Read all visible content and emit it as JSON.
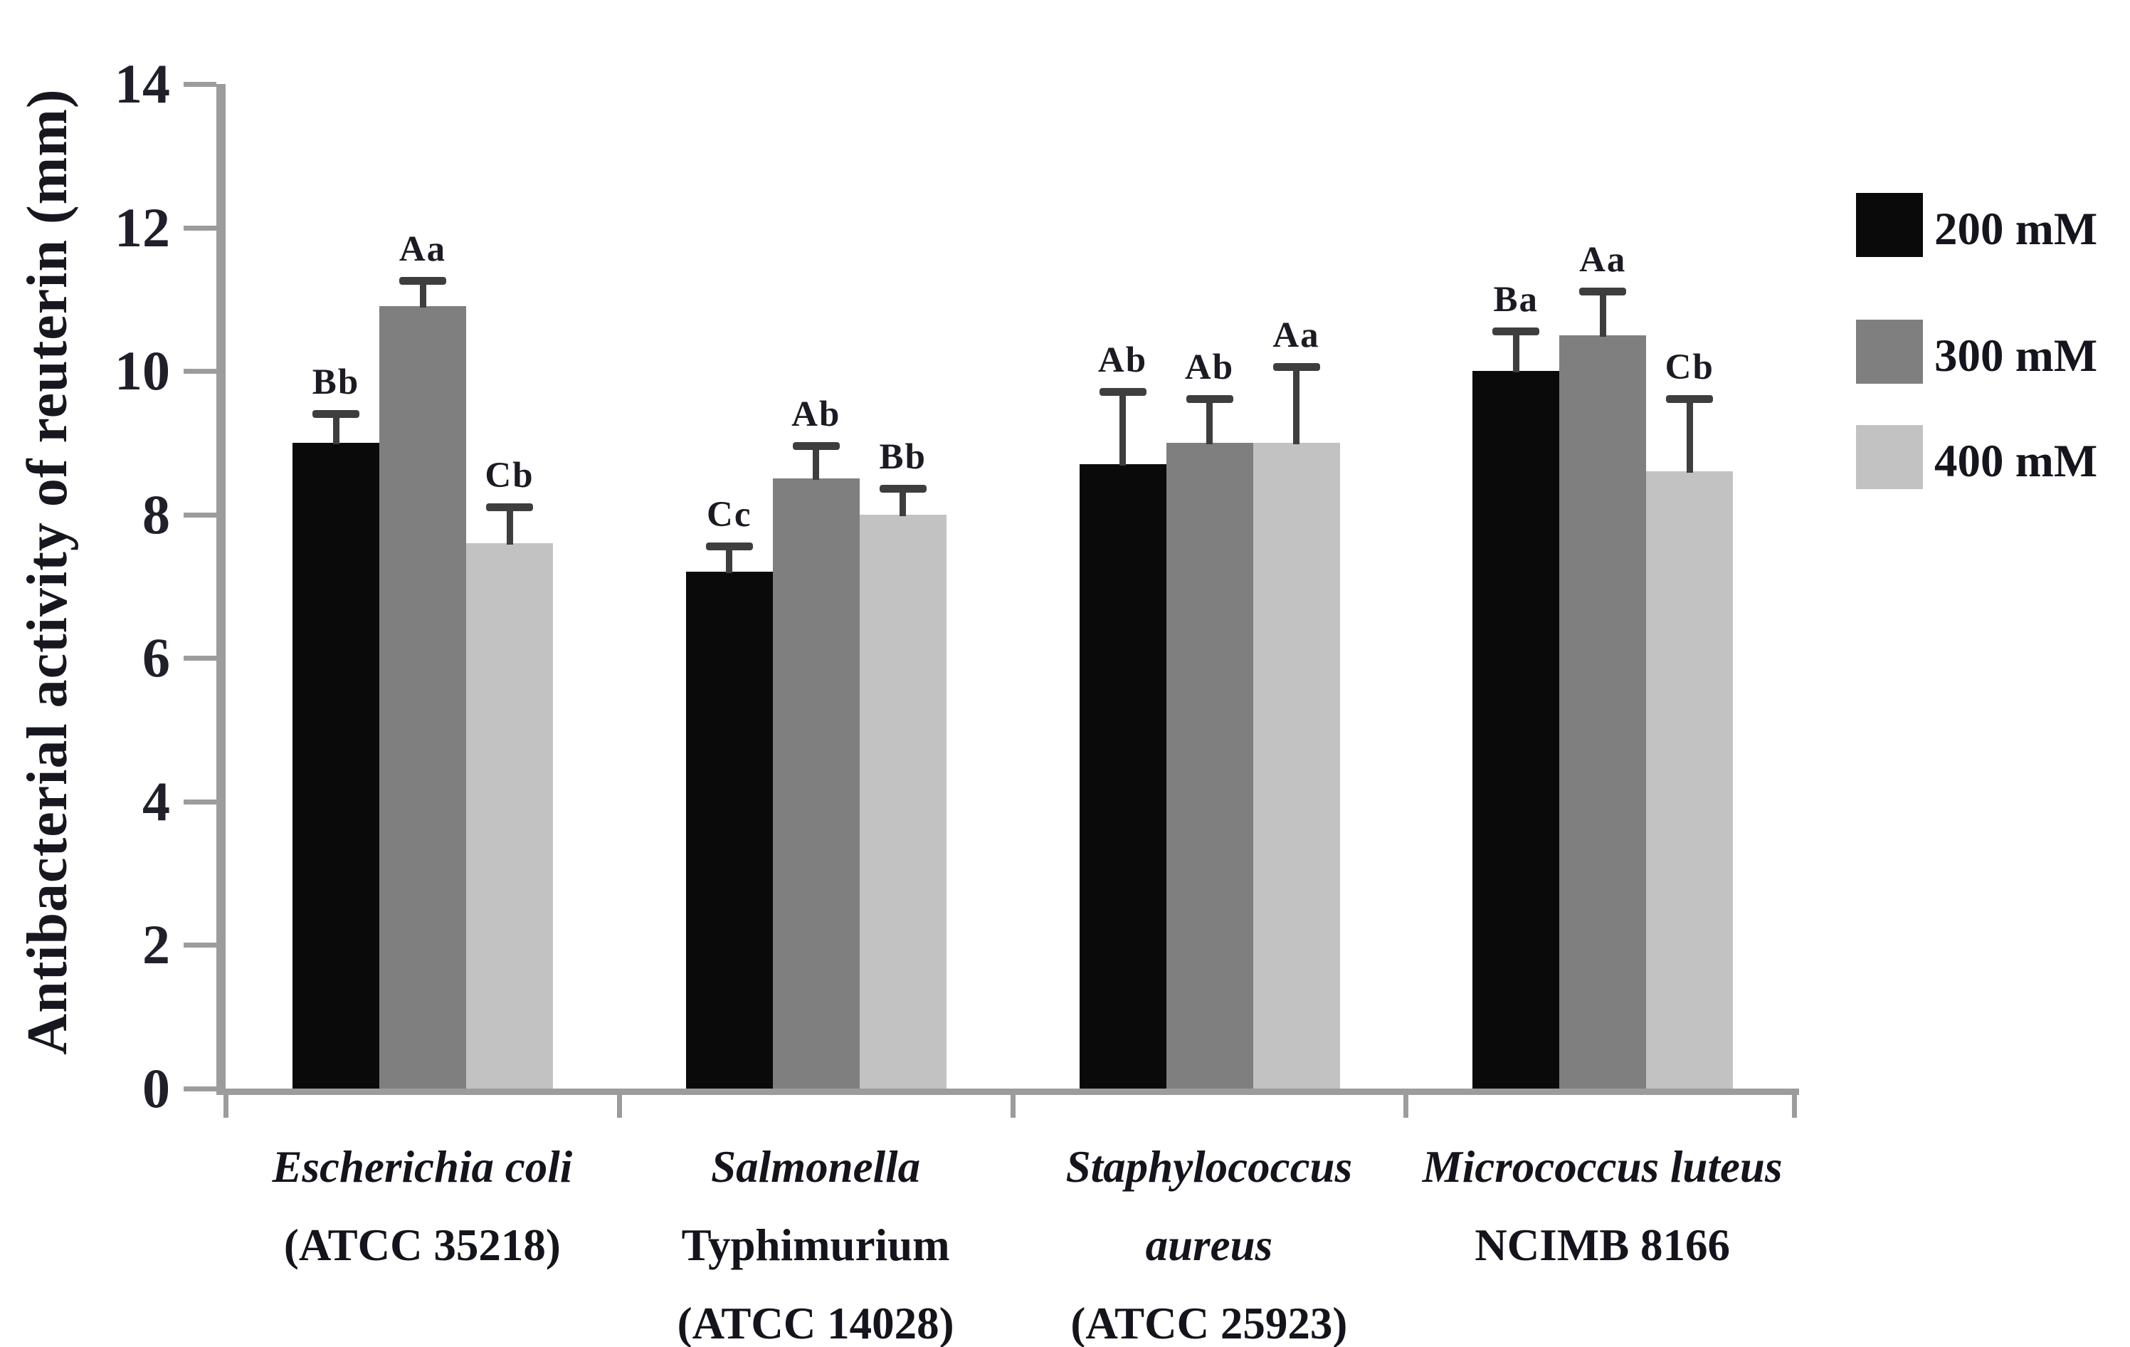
{
  "chart_data": {
    "type": "bar",
    "title": "",
    "ylabel": "Antibacterial activity of reuterin (mm)",
    "xlabel": "",
    "ylim": [
      0,
      14
    ],
    "yticks": [
      14,
      12,
      10,
      8,
      6,
      4,
      2,
      0
    ],
    "grid": false,
    "legend_position": "top-right",
    "error_bars": "upper-only",
    "categories": [
      {
        "id": "escherichia-coli",
        "lines": [
          {
            "text": "Escherichia coli",
            "italic": true
          },
          {
            "text": "(ATCC 35218)",
            "italic": false
          }
        ]
      },
      {
        "id": "salmonella-typhimurium",
        "lines": [
          {
            "text": "Salmonella",
            "italic": true
          },
          {
            "text": "Typhimurium",
            "italic": false
          },
          {
            "text": "(ATCC 14028)",
            "italic": false
          }
        ]
      },
      {
        "id": "staphylococcus-aureus",
        "lines": [
          {
            "text": "Staphylococcus",
            "italic": true
          },
          {
            "text": "aureus",
            "italic": true
          },
          {
            "text": "(ATCC 25923)",
            "italic": false
          }
        ]
      },
      {
        "id": "micrococcus-luteus",
        "lines": [
          {
            "text": "Micrococcus luteus",
            "italic": true
          },
          {
            "text": "NCIMB 8166",
            "italic": false
          }
        ]
      }
    ],
    "series": [
      {
        "name": "200 mM",
        "color": "#0a0a0a",
        "values": [
          9.0,
          7.2,
          8.7,
          10.0
        ],
        "errors": [
          0.4,
          0.35,
          1.0,
          0.55
        ],
        "letters": [
          "Bb",
          "Cc",
          "Ab",
          "Ba"
        ]
      },
      {
        "name": "300 mM",
        "color": "#7f7f7f",
        "values": [
          10.9,
          8.5,
          9.0,
          10.5
        ],
        "errors": [
          0.35,
          0.45,
          0.6,
          0.6
        ],
        "letters": [
          "Aa",
          "Ab",
          "Ab",
          "Aa"
        ]
      },
      {
        "name": "400 mM",
        "color": "#c2c2c2",
        "values": [
          7.6,
          8.0,
          9.0,
          8.6
        ],
        "errors": [
          0.5,
          0.35,
          1.05,
          1.0
        ],
        "letters": [
          "Cb",
          "Bb",
          "Aa",
          "Cb"
        ]
      }
    ]
  },
  "colors": {
    "axis": "#9c9c9c",
    "error_bar": "#3e3e3e",
    "text": "#1b1b24",
    "background": "#ffffff"
  }
}
